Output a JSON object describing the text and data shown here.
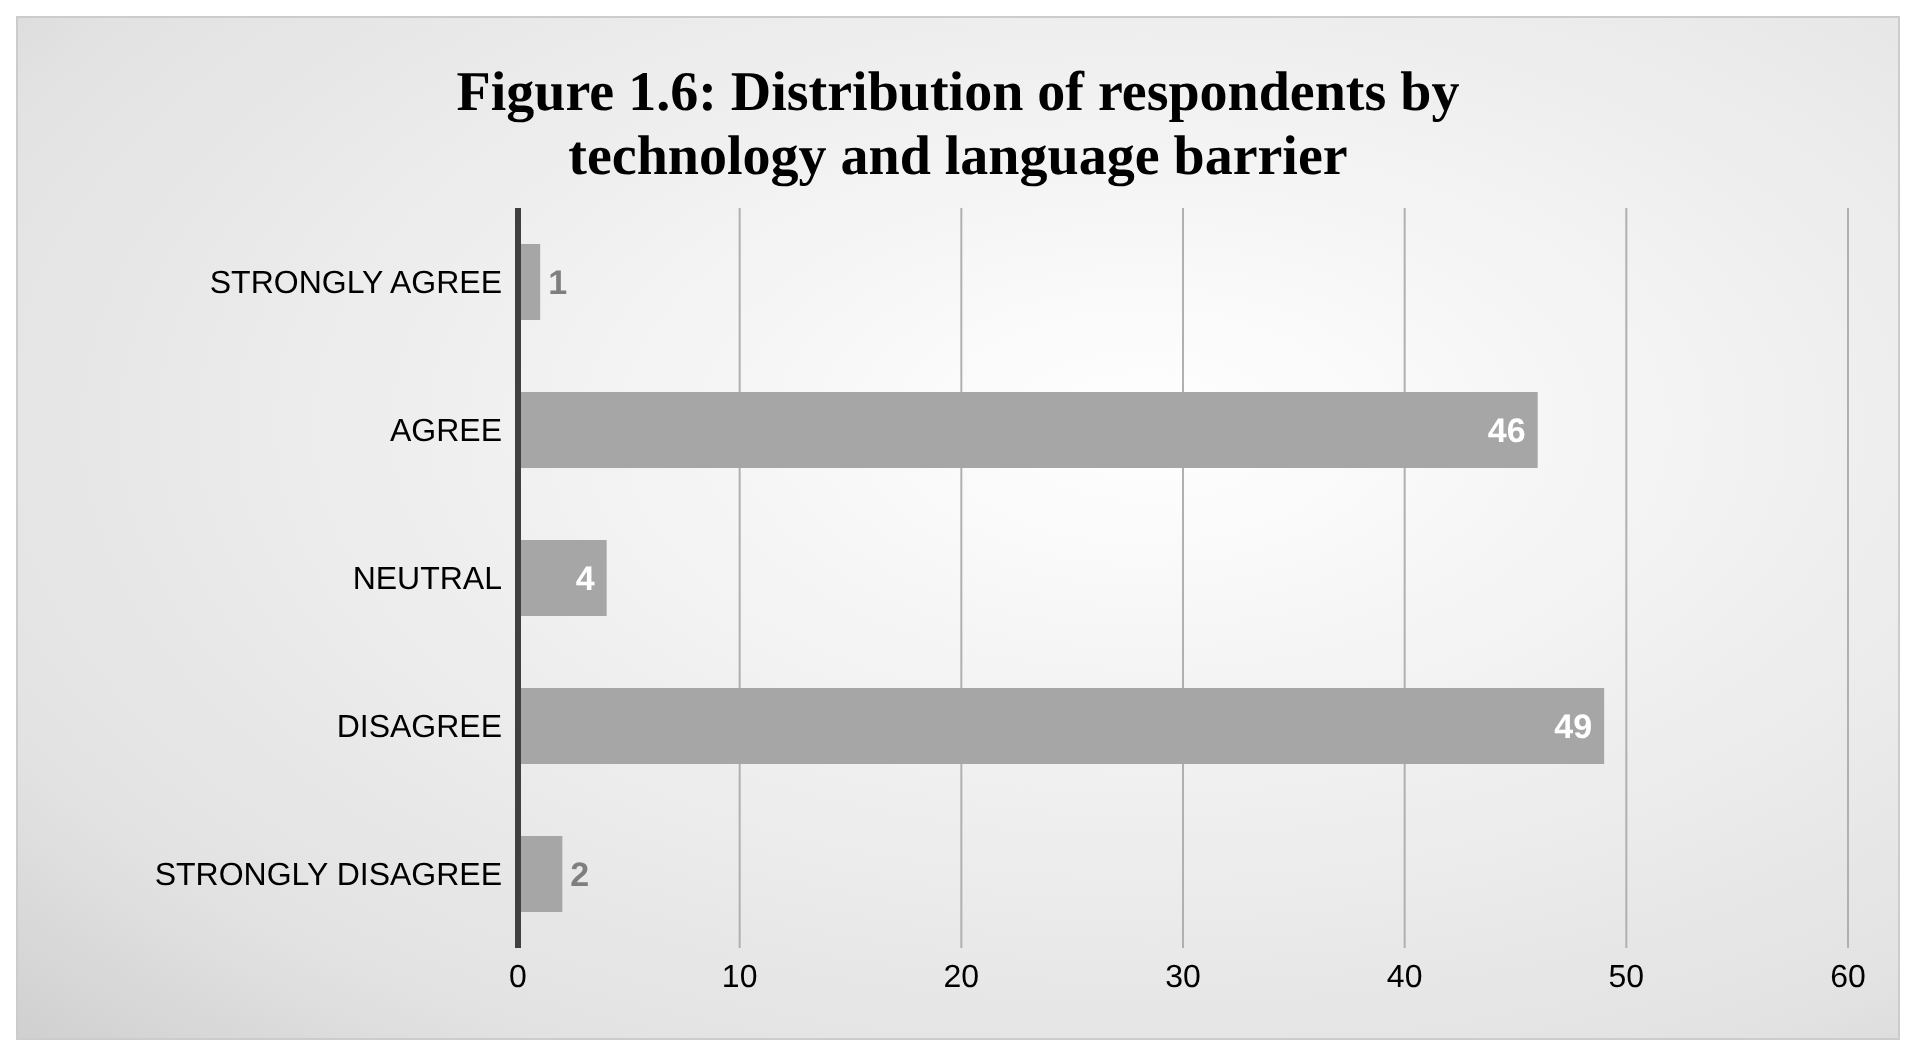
{
  "chart_data": {
    "type": "bar",
    "orientation": "horizontal",
    "title": "Figure 1.6: Distribution of respondents by technology and language barrier",
    "categories": [
      "STRONGLY AGREE",
      "AGREE",
      "NEUTRAL",
      "DISAGREE",
      "STRONGLY DISAGREE"
    ],
    "values": [
      1,
      46,
      4,
      49,
      2
    ],
    "color": "#a6a6a6",
    "data_labels": true,
    "xlim": [
      0,
      60
    ],
    "xticks": [
      0,
      10,
      20,
      30,
      40,
      50,
      60
    ],
    "grid": "x",
    "legend": false
  }
}
